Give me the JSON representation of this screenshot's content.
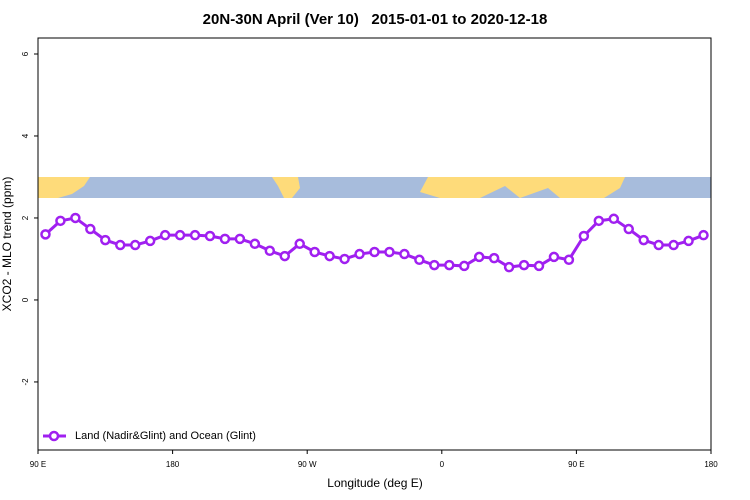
{
  "chart_data": {
    "type": "line",
    "title": "20N-30N April (Ver 10)   2015-01-01 to 2020-12-18",
    "x_label": "Longitude (deg E)",
    "y_label": "XCO2 - MLO trend (ppm)",
    "x": [
      95,
      105,
      115,
      125,
      135,
      145,
      155,
      165,
      175,
      185,
      195,
      205,
      215,
      225,
      235,
      245,
      255,
      265,
      275,
      285,
      295,
      305,
      315,
      325,
      335,
      345,
      355,
      365,
      375,
      385,
      395,
      405,
      415,
      425,
      435,
      445,
      455,
      465,
      475,
      485,
      495,
      505,
      515,
      525,
      535
    ],
    "series": [
      {
        "name": "Land (Nadir&Glint) and Ocean (Glint)",
        "color": "#a020f0",
        "values": [
          1.6,
          1.93,
          2.0,
          1.73,
          1.46,
          1.34,
          1.34,
          1.44,
          1.58,
          1.58,
          1.58,
          1.56,
          1.49,
          1.49,
          1.37,
          1.2,
          1.07,
          1.37,
          1.17,
          1.07,
          1.0,
          1.12,
          1.17,
          1.17,
          1.12,
          0.98,
          0.85,
          0.85,
          0.83,
          1.05,
          1.02,
          0.8,
          0.85,
          0.83,
          1.05,
          0.98,
          1.56,
          1.93,
          1.98,
          1.73,
          1.46,
          1.34,
          1.34,
          1.44,
          1.58
        ]
      }
    ],
    "xlim": [
      90,
      540
    ],
    "xticks": [
      {
        "value": 90,
        "label": "90 E"
      },
      180,
      {
        "value": 270,
        "label": "90 W"
      },
      {
        "value": 360,
        "label": "0"
      },
      {
        "value": 450,
        "label": "90 E"
      },
      {
        "value": 540,
        "label": "180"
      }
    ],
    "ylim": [
      -3.66,
      6.39
    ],
    "yticks": [
      -2,
      0,
      2,
      4,
      6
    ],
    "legend": "bottom-left"
  }
}
